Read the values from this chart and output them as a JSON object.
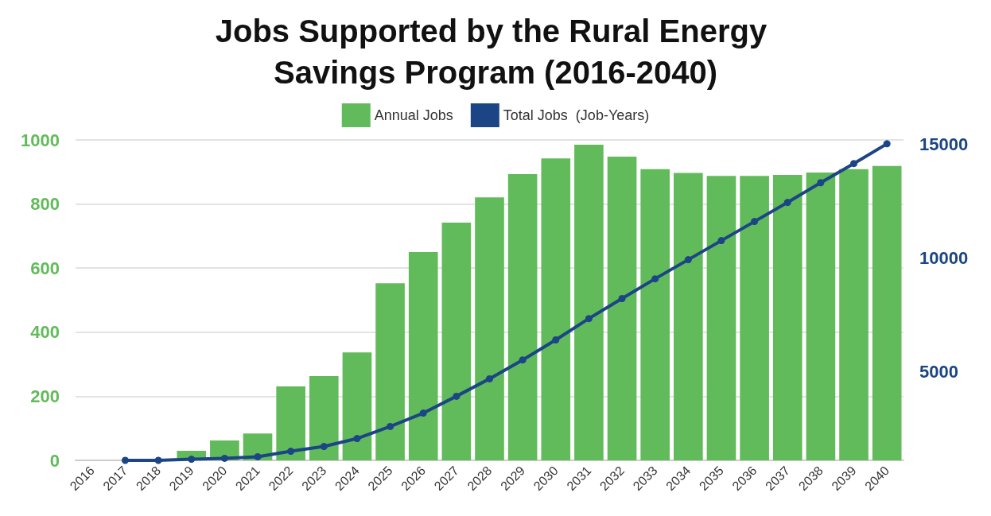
{
  "chart_data": {
    "type": "bar",
    "title": "Jobs Supported by the Rural Energy Savings Program (2016-2040)",
    "categories": [
      "2016",
      "2017",
      "2018",
      "2019",
      "2020",
      "2021",
      "2022",
      "2023",
      "2024",
      "2025",
      "2026",
      "2027",
      "2028",
      "2029",
      "2030",
      "2031",
      "2032",
      "2033",
      "2034",
      "2035",
      "2036",
      "2037",
      "2038",
      "2039",
      "2040"
    ],
    "series": [
      {
        "name": "Annual Jobs",
        "color": "#62bb5b",
        "values": [
          0,
          0,
          0,
          30,
          62,
          84,
          231,
          263,
          337,
          553,
          650,
          742,
          821,
          893,
          942,
          985,
          948,
          909,
          897,
          888,
          888,
          891,
          898,
          909,
          919
        ]
      },
      {
        "name": "Total Jobs  (Job-Years)",
        "type": "line",
        "axis": "y2",
        "color": "#1b4584",
        "values": [
          null,
          1100,
          1100,
          1150,
          1190,
          1260,
          1500,
          1710,
          2060,
          2590,
          3180,
          3920,
          4690,
          5520,
          6400,
          7340,
          8220,
          9090,
          9930,
          10770,
          11610,
          12450,
          13320,
          14160,
          15030
        ]
      }
    ],
    "ylim": [
      0,
      1000
    ],
    "yticks": [
      0,
      200,
      400,
      600,
      800,
      1000
    ],
    "y2lim": [
      1100,
      15200
    ],
    "y2ticks": [
      5000,
      10000,
      15000
    ],
    "grid": "y",
    "legend": "top",
    "marker": "circle",
    "line_style": "solid"
  }
}
